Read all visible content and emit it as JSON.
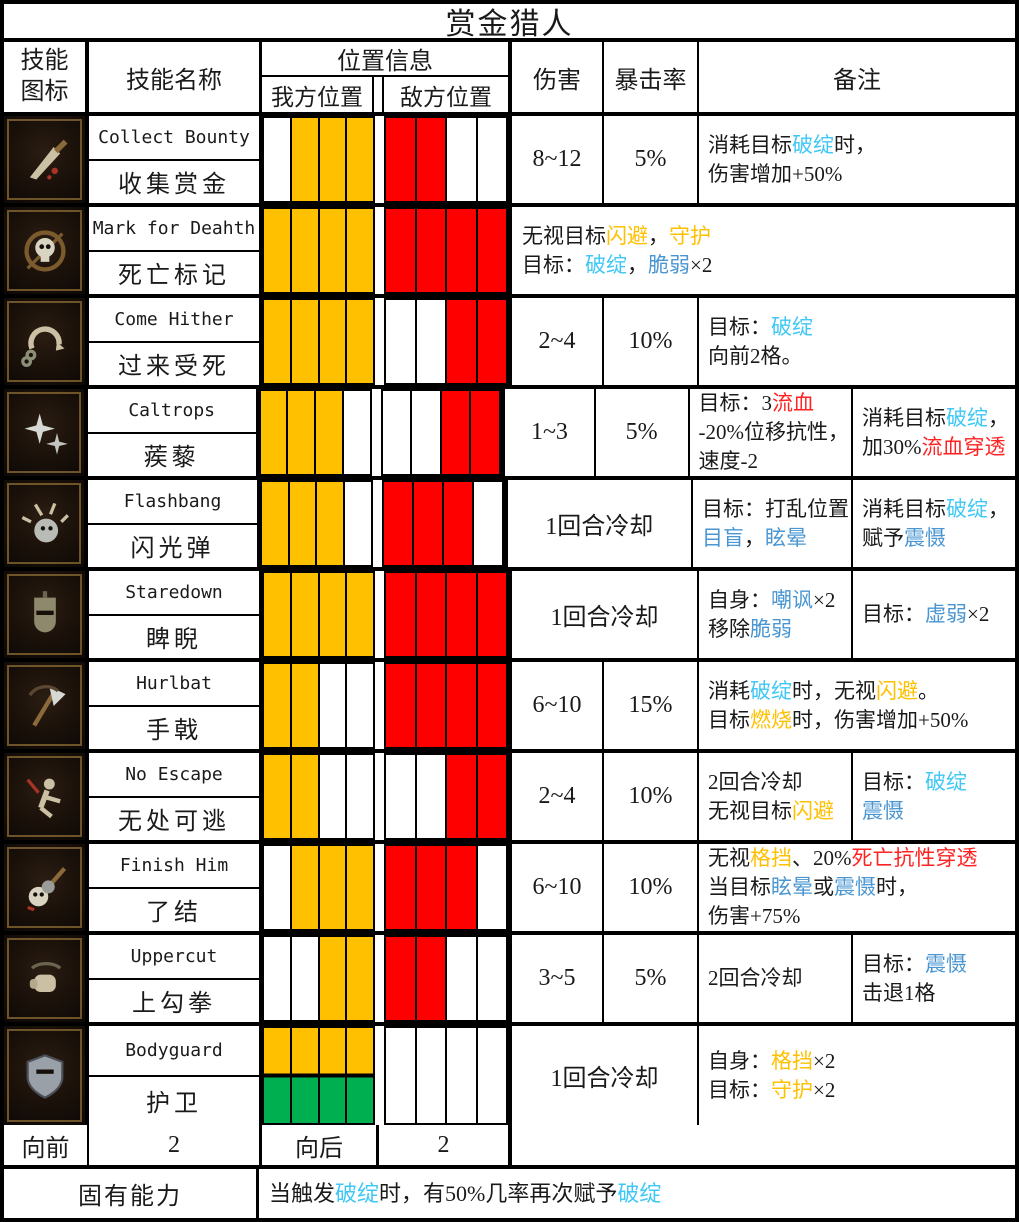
{
  "title": "赏金猎人",
  "header": {
    "icon_line1": "技能",
    "icon_line2": "图标",
    "name": "技能名称",
    "position": "位置信息",
    "ally": "我方位置",
    "enemy": "敌方位置",
    "damage": "伤害",
    "crit": "暴击率",
    "notes": "备注"
  },
  "colors": {
    "cyan": "#3FC8F5",
    "blue": "#4A96D2",
    "orange": "#FFC000",
    "red": "#FF2222",
    "cell_orange": "#FFC000",
    "cell_red": "#FF0000",
    "cell_green": "#00B050"
  },
  "skills": [
    {
      "icon": "collect-bounty-icon",
      "name_en": "Collect Bounty",
      "name_cn": "收集赏金",
      "ally": [
        "w",
        "o",
        "o",
        "o"
      ],
      "enemy": [
        "r",
        "r",
        "w",
        "w"
      ],
      "damage": "8~12",
      "crit": "5%",
      "notes": {
        "type": "single",
        "lines": [
          [
            {
              "t": "消耗目标"
            },
            {
              "t": "破绽",
              "c": "cyan"
            },
            {
              "t": "时，"
            }
          ],
          [
            {
              "t": "伤害增加+50%"
            }
          ]
        ]
      }
    },
    {
      "icon": "mark-for-death-icon",
      "name_en": "Mark for Deahth",
      "name_cn": "死亡标记",
      "ally": [
        "o",
        "o",
        "o",
        "o"
      ],
      "enemy": [
        "r",
        "r",
        "r",
        "r"
      ],
      "notes": {
        "type": "full",
        "lines": [
          [
            {
              "t": "无视目标"
            },
            {
              "t": "闪避",
              "c": "orange"
            },
            {
              "t": "，"
            },
            {
              "t": "守护",
              "c": "orange"
            }
          ],
          [
            {
              "t": "目标："
            },
            {
              "t": "破绽",
              "c": "cyan"
            },
            {
              "t": "，"
            },
            {
              "t": "脆弱",
              "c": "blue"
            },
            {
              "t": "×2"
            }
          ]
        ]
      }
    },
    {
      "icon": "come-hither-icon",
      "name_en": "Come Hither",
      "name_cn": "过来受死",
      "ally": [
        "o",
        "o",
        "o",
        "o"
      ],
      "enemy": [
        "w",
        "w",
        "r",
        "r"
      ],
      "damage": "2~4",
      "crit": "10%",
      "notes": {
        "type": "single",
        "lines": [
          [
            {
              "t": "目标："
            },
            {
              "t": "破绽",
              "c": "cyan"
            }
          ],
          [
            {
              "t": "向前2格。"
            }
          ]
        ]
      }
    },
    {
      "icon": "caltrops-icon",
      "name_en": "Caltrops",
      "name_cn": "蒺藜",
      "ally": [
        "o",
        "o",
        "o",
        "w"
      ],
      "enemy": [
        "w",
        "w",
        "r",
        "r"
      ],
      "damage": "1~3",
      "crit": "5%",
      "notes": {
        "type": "split",
        "left": [
          [
            {
              "t": "目标：3"
            },
            {
              "t": "流血",
              "c": "red"
            }
          ],
          [
            {
              "t": "-20%位移抗性，"
            }
          ],
          [
            {
              "t": "速度-2"
            }
          ]
        ],
        "right": [
          [
            {
              "t": "消耗目标"
            },
            {
              "t": "破绽",
              "c": "cyan"
            },
            {
              "t": "，"
            }
          ],
          [
            {
              "t": "加30%"
            },
            {
              "t": "流血穿透",
              "c": "red"
            }
          ]
        ]
      }
    },
    {
      "icon": "flashbang-icon",
      "name_en": "Flashbang",
      "name_cn": "闪光弹",
      "ally": [
        "o",
        "o",
        "o",
        "w"
      ],
      "enemy": [
        "r",
        "r",
        "r",
        "w"
      ],
      "cooldown": "1回合冷却",
      "notes": {
        "type": "split",
        "left": [
          [
            {
              "t": "目标：打乱位置"
            }
          ],
          [
            {
              "t": "目盲",
              "c": "blue"
            },
            {
              "t": "，"
            },
            {
              "t": "眩晕",
              "c": "blue"
            }
          ]
        ],
        "right": [
          [
            {
              "t": "消耗目标"
            },
            {
              "t": "破绽",
              "c": "cyan"
            },
            {
              "t": "，"
            }
          ],
          [
            {
              "t": "赋予"
            },
            {
              "t": "震慑",
              "c": "blue"
            }
          ]
        ]
      }
    },
    {
      "icon": "staredown-icon",
      "name_en": "Staredown",
      "name_cn": "睥睨",
      "ally": [
        "o",
        "o",
        "o",
        "o"
      ],
      "enemy": [
        "r",
        "r",
        "r",
        "r"
      ],
      "cooldown": "1回合冷却",
      "notes": {
        "type": "split",
        "left": [
          [
            {
              "t": "自身："
            },
            {
              "t": "嘲讽",
              "c": "blue"
            },
            {
              "t": "×2"
            }
          ],
          [
            {
              "t": "移除"
            },
            {
              "t": "脆弱",
              "c": "blue"
            }
          ]
        ],
        "right": [
          [
            {
              "t": "目标："
            },
            {
              "t": "虚弱",
              "c": "blue"
            },
            {
              "t": "×2"
            }
          ]
        ]
      }
    },
    {
      "icon": "hurlbat-icon",
      "name_en": "Hurlbat",
      "name_cn": "手戟",
      "ally": [
        "o",
        "o",
        "w",
        "w"
      ],
      "enemy": [
        "r",
        "r",
        "r",
        "r"
      ],
      "damage": "6~10",
      "crit": "15%",
      "notes": {
        "type": "single",
        "lines": [
          [
            {
              "t": "消耗"
            },
            {
              "t": "破绽",
              "c": "cyan"
            },
            {
              "t": "时，无视"
            },
            {
              "t": "闪避",
              "c": "orange"
            },
            {
              "t": "。"
            }
          ],
          [
            {
              "t": "目标"
            },
            {
              "t": "燃烧",
              "c": "orange"
            },
            {
              "t": "时，伤害增加+50%"
            }
          ]
        ]
      }
    },
    {
      "icon": "no-escape-icon",
      "name_en": "No Escape",
      "name_cn": "无处可逃",
      "ally": [
        "o",
        "o",
        "w",
        "w"
      ],
      "enemy": [
        "w",
        "w",
        "r",
        "r"
      ],
      "damage": "2~4",
      "crit": "10%",
      "notes": {
        "type": "split",
        "left": [
          [
            {
              "t": "2回合冷却"
            }
          ],
          [
            {
              "t": "无视目标"
            },
            {
              "t": "闪避",
              "c": "orange"
            }
          ]
        ],
        "right": [
          [
            {
              "t": "目标："
            },
            {
              "t": "破绽",
              "c": "cyan"
            }
          ],
          [
            {
              "t": "震慑",
              "c": "blue"
            }
          ]
        ]
      }
    },
    {
      "icon": "finish-him-icon",
      "name_en": "Finish Him",
      "name_cn": "了结",
      "ally": [
        "w",
        "o",
        "o",
        "o"
      ],
      "enemy": [
        "r",
        "r",
        "r",
        "w"
      ],
      "damage": "6~10",
      "crit": "10%",
      "notes": {
        "type": "single",
        "lines": [
          [
            {
              "t": "无视"
            },
            {
              "t": "格挡",
              "c": "orange"
            },
            {
              "t": "、20%"
            },
            {
              "t": "死亡抗性穿透",
              "c": "red"
            }
          ],
          [
            {
              "t": "当目标"
            },
            {
              "t": "眩晕",
              "c": "blue"
            },
            {
              "t": "或"
            },
            {
              "t": "震慑",
              "c": "blue"
            },
            {
              "t": "时，"
            }
          ],
          [
            {
              "t": "伤害+75%"
            }
          ]
        ]
      }
    },
    {
      "icon": "uppercut-icon",
      "name_en": "Uppercut",
      "name_cn": "上勾拳",
      "ally": [
        "w",
        "w",
        "o",
        "o"
      ],
      "enemy": [
        "r",
        "r",
        "w",
        "w"
      ],
      "damage": "3~5",
      "crit": "5%",
      "notes": {
        "type": "split",
        "left": [
          [
            {
              "t": "2回合冷却"
            }
          ]
        ],
        "right": [
          [
            {
              "t": "目标："
            },
            {
              "t": "震慑",
              "c": "blue"
            }
          ],
          [
            {
              "t": "击退1格"
            }
          ]
        ]
      }
    },
    {
      "icon": "bodyguard-icon",
      "name_en": "Bodyguard",
      "name_cn": "护卫",
      "tall": true,
      "ally": [
        "og",
        "og",
        "og",
        "og"
      ],
      "enemy": [
        "w",
        "w",
        "w",
        "w"
      ],
      "cooldown": "1回合冷却",
      "notes": {
        "type": "single",
        "lines": [
          [
            {
              "t": "自身："
            },
            {
              "t": "格挡",
              "c": "orange"
            },
            {
              "t": "×2"
            }
          ],
          [
            {
              "t": "目标："
            },
            {
              "t": "守护",
              "c": "orange"
            },
            {
              "t": "×2"
            }
          ]
        ]
      }
    }
  ],
  "footer": {
    "forward_label": "向前",
    "forward_value": "2",
    "backward_label": "向后",
    "backward_value": "2",
    "innate_label": "固有能力",
    "innate_note": [
      {
        "t": "当触发"
      },
      {
        "t": "破绽",
        "c": "cyan"
      },
      {
        "t": "时，有50%几率再次赋予"
      },
      {
        "t": "破绽",
        "c": "cyan"
      }
    ]
  }
}
